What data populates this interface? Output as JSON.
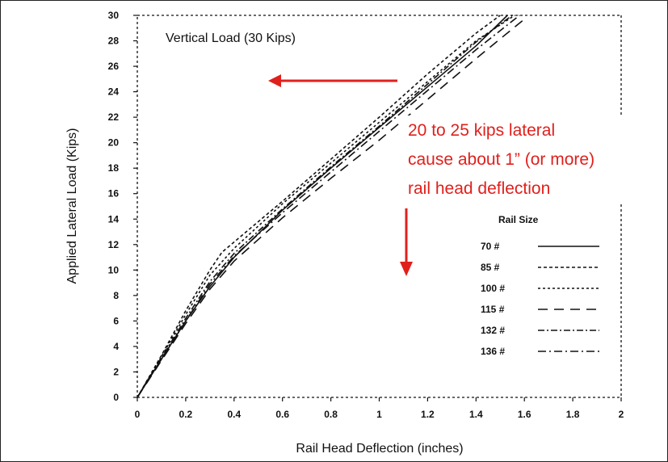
{
  "chart_data": {
    "type": "line",
    "title": "Vertical Load (30 Kips)",
    "xlabel": "Rail Head Deflection (inches)",
    "ylabel": "Applied Lateral Load (Kips)",
    "xlim": [
      0,
      2
    ],
    "ylim": [
      0,
      30
    ],
    "x_ticks": [
      "0",
      "0.2",
      "0.4",
      "0.6",
      "0.8",
      "1",
      "1.2",
      "1.4",
      "1.6",
      "1.8",
      "2"
    ],
    "y_ticks": [
      "0",
      "2",
      "4",
      "6",
      "8",
      "10",
      "12",
      "14",
      "16",
      "18",
      "20",
      "22",
      "24",
      "26",
      "28",
      "30"
    ],
    "grid": false,
    "legend_title": "Rail Size",
    "legend_position": "lower-right",
    "series": [
      {
        "name": "70 #",
        "dash": "",
        "x": [
          0,
          0.1,
          0.2,
          0.3,
          0.4,
          0.6,
          0.8,
          1.0,
          1.2,
          1.4,
          1.53
        ],
        "y": [
          0,
          3,
          6,
          8.7,
          11,
          14.7,
          18,
          21.2,
          24.4,
          27.6,
          30
        ]
      },
      {
        "name": "85 #",
        "dash": "4,3",
        "x": [
          0,
          0.1,
          0.2,
          0.3,
          0.35,
          0.6,
          0.8,
          1.0,
          1.2,
          1.4,
          1.5
        ],
        "y": [
          0,
          3.3,
          6.8,
          10,
          11.4,
          15.4,
          18.7,
          22,
          25.4,
          28.6,
          30
        ]
      },
      {
        "name": "100 #",
        "dash": "3,3",
        "x": [
          0,
          0.1,
          0.2,
          0.3,
          0.4,
          0.6,
          0.8,
          1.0,
          1.2,
          1.4,
          1.56
        ],
        "y": [
          0,
          3.2,
          6.5,
          9.6,
          11.7,
          15.2,
          18.4,
          21.6,
          24.8,
          28,
          30
        ]
      },
      {
        "name": "115 #",
        "dash": "12,8",
        "x": [
          0,
          0.1,
          0.2,
          0.3,
          0.4,
          0.6,
          0.8,
          1.0,
          1.2,
          1.4,
          1.6
        ],
        "y": [
          0,
          2.9,
          5.8,
          8.5,
          10.7,
          14.1,
          17.2,
          20.2,
          23.4,
          26.6,
          29.7
        ]
      },
      {
        "name": "132 #",
        "dash": "8,3,2,3",
        "x": [
          0,
          0.1,
          0.2,
          0.3,
          0.4,
          0.6,
          0.8,
          1.0,
          1.2,
          1.4,
          1.55
        ],
        "y": [
          0,
          3.1,
          6.2,
          9.1,
          11.3,
          14.8,
          18.1,
          21.3,
          24.6,
          27.9,
          30
        ]
      },
      {
        "name": "136 #",
        "dash": "10,4,2,4",
        "x": [
          0,
          0.1,
          0.2,
          0.3,
          0.4,
          0.6,
          0.8,
          1.0,
          1.2,
          1.4,
          1.58
        ],
        "y": [
          0,
          3,
          6,
          8.9,
          11.1,
          14.5,
          17.7,
          20.9,
          24.1,
          27.3,
          30
        ]
      }
    ],
    "annotation": {
      "lines": [
        "20 to 25 kips lateral",
        "cause about 1” (or more)",
        "rail head deflection"
      ],
      "color": "#e0201c"
    }
  }
}
